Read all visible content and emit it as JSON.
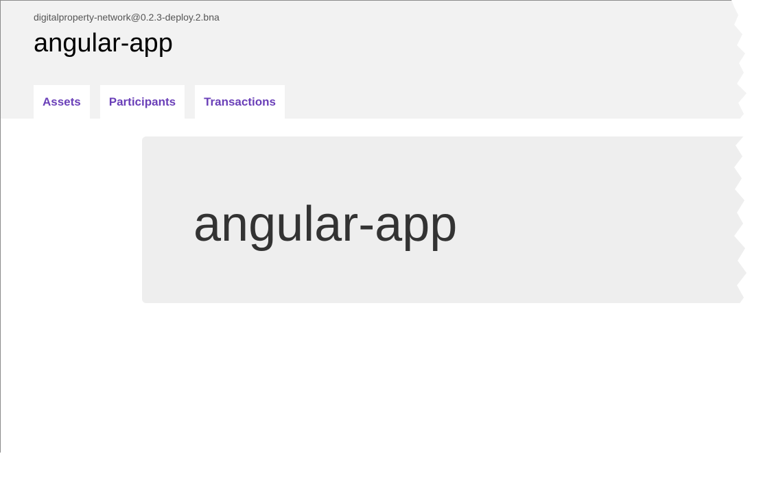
{
  "header": {
    "network_name": "digitalproperty-network@0.2.3-deploy.2.bna",
    "app_title": "angular-app"
  },
  "tabs": [
    {
      "label": "Assets"
    },
    {
      "label": "Participants"
    },
    {
      "label": "Transactions"
    }
  ],
  "main": {
    "jumbotron_title": "angular-app"
  },
  "colors": {
    "header_bg": "#f2f2f2",
    "tab_text": "#6a3fb8",
    "jumbotron_bg": "#eeeeee"
  }
}
